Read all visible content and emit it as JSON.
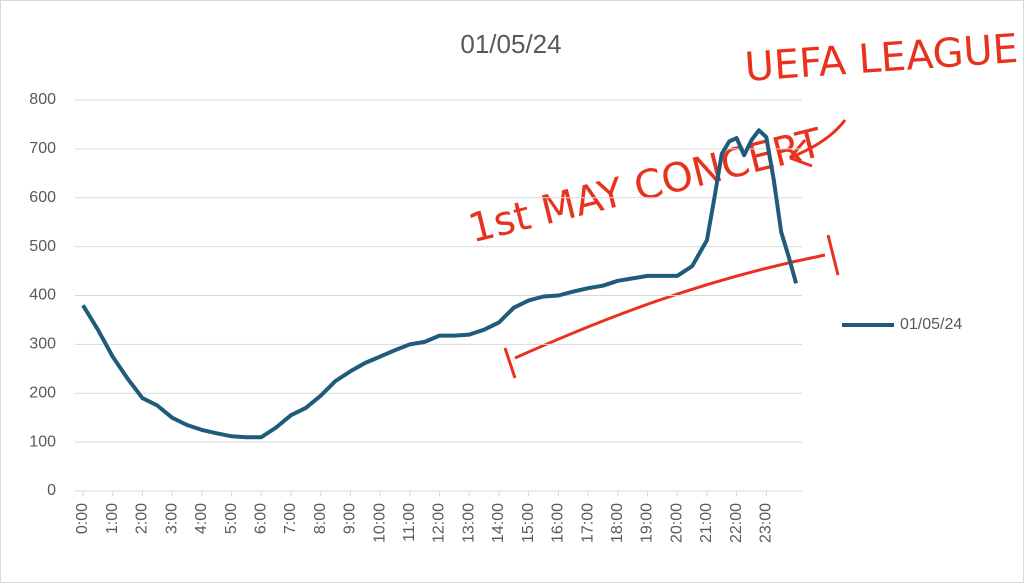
{
  "chart_data": {
    "type": "line",
    "title": "01/05/24",
    "x": [
      0,
      0.5,
      1,
      1.5,
      2,
      2.5,
      3,
      3.5,
      4,
      4.5,
      5,
      5.5,
      6,
      6.5,
      7,
      7.5,
      8,
      8.5,
      9,
      9.5,
      10,
      10.5,
      11,
      11.5,
      12,
      12.5,
      13,
      13.5,
      14,
      14.5,
      15,
      15.5,
      16,
      16.5,
      17,
      17.5,
      18,
      18.5,
      19,
      19.5,
      20,
      20.5,
      21,
      21.25,
      21.5,
      21.75,
      22,
      22.25,
      22.5,
      22.75,
      23,
      23.25,
      23.5,
      23.75,
      24
    ],
    "series": [
      {
        "name": "01/05/24",
        "color": "#1f5b7a",
        "values": [
          380,
          330,
          275,
          230,
          190,
          175,
          150,
          135,
          125,
          118,
          112,
          110,
          110,
          130,
          155,
          170,
          195,
          225,
          245,
          262,
          275,
          288,
          300,
          305,
          318,
          318,
          320,
          330,
          345,
          375,
          390,
          398,
          400,
          408,
          415,
          420,
          430,
          435,
          440,
          440,
          440,
          460,
          513,
          600,
          690,
          715,
          722,
          687,
          718,
          738,
          724,
          636,
          530,
          480,
          425
        ]
      }
    ],
    "xlim": [
      0,
      24.2
    ],
    "xticks": [
      {
        "value": 0,
        "label": "0:00"
      },
      {
        "value": 1,
        "label": "1:00"
      },
      {
        "value": 2,
        "label": "2:00"
      },
      {
        "value": 3,
        "label": "3:00"
      },
      {
        "value": 4,
        "label": "4:00"
      },
      {
        "value": 5,
        "label": "5:00"
      },
      {
        "value": 6,
        "label": "6:00"
      },
      {
        "value": 7,
        "label": "7:00"
      },
      {
        "value": 8,
        "label": "8:00"
      },
      {
        "value": 9,
        "label": "9:00"
      },
      {
        "value": 10,
        "label": "10:00"
      },
      {
        "value": 11,
        "label": "11:00"
      },
      {
        "value": 12,
        "label": "12:00"
      },
      {
        "value": 13,
        "label": "13:00"
      },
      {
        "value": 14,
        "label": "14:00"
      },
      {
        "value": 15,
        "label": "15:00"
      },
      {
        "value": 16,
        "label": "16:00"
      },
      {
        "value": 17,
        "label": "17:00"
      },
      {
        "value": 18,
        "label": "18:00"
      },
      {
        "value": 19,
        "label": "19:00"
      },
      {
        "value": 20,
        "label": "20:00"
      },
      {
        "value": 21,
        "label": "21:00"
      },
      {
        "value": 22,
        "label": "22:00"
      },
      {
        "value": 23,
        "label": "23:00"
      }
    ],
    "ylim": [
      0,
      800
    ],
    "yticks": [
      0,
      100,
      200,
      300,
      400,
      500,
      600,
      700,
      800
    ],
    "grid": true,
    "legend": "right",
    "annotations": [
      "1st MAY CONCERT",
      "UEFA LEAGUE"
    ]
  }
}
